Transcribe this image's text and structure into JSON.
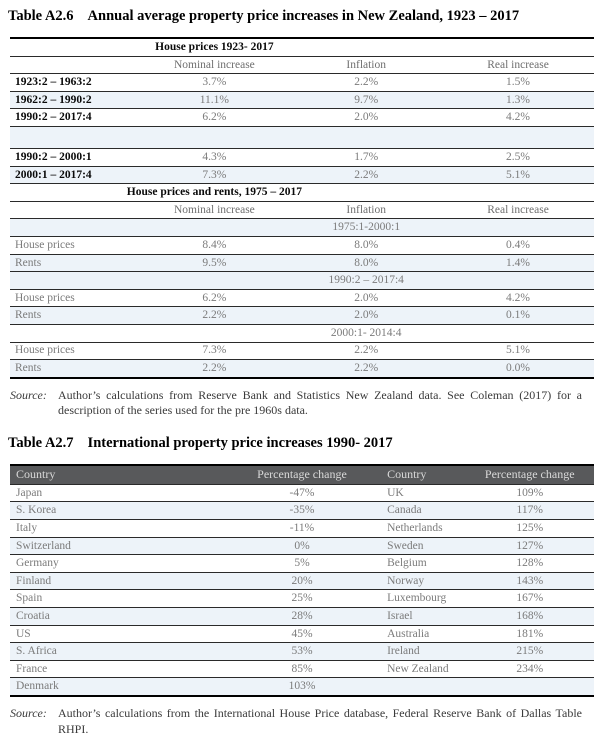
{
  "colors": {
    "stripe": "#edf3f9",
    "rule": "#2a2a2a",
    "header_bg": "#58595b",
    "header_text": "#d9d9d9",
    "data_text": "#7b7b7b",
    "bold_text": "#0a0a0a"
  },
  "table_a26": {
    "title_label": "Table A2.6",
    "title_text": "Annual average property price increases in New Zealand, 1923 – 2017",
    "rows": [
      {
        "type": "section",
        "label": "House prices 1923- 2017",
        "shade": false
      },
      {
        "type": "headers",
        "cells": [
          "Nominal increase",
          "Inflation",
          "Real increase"
        ],
        "shade": false
      },
      {
        "type": "data",
        "label": "1923:2 – 1963:2",
        "bold": true,
        "cells": [
          "3.7%",
          "2.2%",
          "1.5%"
        ],
        "shade": false
      },
      {
        "type": "data",
        "label": "1962:2 – 1990:2",
        "bold": true,
        "cells": [
          "11.1%",
          "9.7%",
          "1.3%"
        ],
        "shade": true
      },
      {
        "type": "data",
        "label": "1990:2 – 2017:4",
        "bold": true,
        "cells": [
          "6.2%",
          "2.0%",
          "4.2%"
        ],
        "shade": false
      },
      {
        "type": "blank",
        "shade": true
      },
      {
        "type": "data",
        "label": "1990:2 – 2000:1",
        "bold": true,
        "cells": [
          "4.3%",
          "1.7%",
          "2.5%"
        ],
        "shade": false
      },
      {
        "type": "data",
        "label": "2000:1 – 2017:4",
        "bold": true,
        "cells": [
          "7.3%",
          "2.2%",
          "5.1%"
        ],
        "shade": true
      },
      {
        "type": "section",
        "label": "House prices and rents, 1975 – 2017",
        "shade": false
      },
      {
        "type": "headers",
        "cells": [
          "Nominal increase",
          "Inflation",
          "Real increase"
        ],
        "shade": false
      },
      {
        "type": "period",
        "label": "1975:1-2000:1",
        "shade": true
      },
      {
        "type": "data",
        "label": "House prices",
        "bold": false,
        "cells": [
          "8.4%",
          "8.0%",
          "0.4%"
        ],
        "shade": false
      },
      {
        "type": "data",
        "label": "Rents",
        "bold": false,
        "cells": [
          "9.5%",
          "8.0%",
          "1.4%"
        ],
        "shade": true
      },
      {
        "type": "period",
        "label": "1990:2 – 2017:4",
        "shade": true
      },
      {
        "type": "data",
        "label": "House prices",
        "bold": false,
        "cells": [
          "6.2%",
          "2.0%",
          "4.2%"
        ],
        "shade": false
      },
      {
        "type": "data",
        "label": "Rents",
        "bold": false,
        "cells": [
          "2.2%",
          "2.0%",
          "0.1%"
        ],
        "shade": true
      },
      {
        "type": "period",
        "label": "2000:1- 2014:4",
        "shade": false
      },
      {
        "type": "data",
        "label": "House prices",
        "bold": false,
        "cells": [
          "7.3%",
          "2.2%",
          "5.1%"
        ],
        "shade": false
      },
      {
        "type": "data",
        "label": "Rents",
        "bold": false,
        "cells": [
          "2.2%",
          "2.2%",
          "0.0%"
        ],
        "shade": true
      }
    ],
    "source_label": "Source:",
    "source_text": "Author’s calculations from Reserve Bank and Statistics New Zealand data. See Coleman (2017) for a description of the series used for the pre 1960s data."
  },
  "table_a27": {
    "title_label": "Table A2.7",
    "title_text": "International property price increases 1990- 2017",
    "col_headers": [
      "Country",
      "Percentage change",
      "Country",
      "Percentage change"
    ],
    "rows": [
      {
        "cells": [
          "Japan",
          "-47%",
          "UK",
          "109%"
        ],
        "shade": false
      },
      {
        "cells": [
          "S. Korea",
          "-35%",
          "Canada",
          "117%"
        ],
        "shade": true
      },
      {
        "cells": [
          "Italy",
          "-11%",
          "Netherlands",
          "125%"
        ],
        "shade": false
      },
      {
        "cells": [
          "Switzerland",
          "0%",
          "Sweden",
          "127%"
        ],
        "shade": true
      },
      {
        "cells": [
          "Germany",
          "5%",
          "Belgium",
          "128%"
        ],
        "shade": false
      },
      {
        "cells": [
          "Finland",
          "20%",
          "Norway",
          "143%"
        ],
        "shade": true
      },
      {
        "cells": [
          "Spain",
          "25%",
          "Luxembourg",
          "167%"
        ],
        "shade": false
      },
      {
        "cells": [
          "Croatia",
          "28%",
          "Israel",
          "168%"
        ],
        "shade": true
      },
      {
        "cells": [
          "US",
          "45%",
          "Australia",
          "181%"
        ],
        "shade": false
      },
      {
        "cells": [
          "S. Africa",
          "53%",
          "Ireland",
          "215%"
        ],
        "shade": true
      },
      {
        "cells": [
          "France",
          "85%",
          "New Zealand",
          "234%"
        ],
        "shade": false
      },
      {
        "cells": [
          "Denmark",
          "103%",
          "",
          ""
        ],
        "shade": true
      }
    ],
    "source_label": "Source:",
    "source_text": "Author’s calculations from the International House Price database, Federal Reserve Bank of Dallas Table RHPI."
  }
}
